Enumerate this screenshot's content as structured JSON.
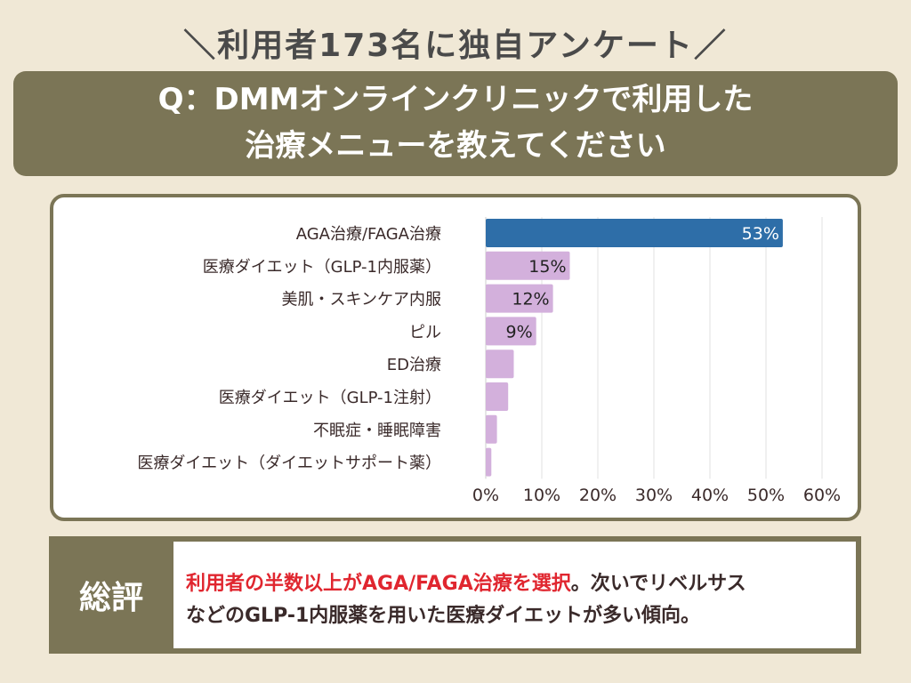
{
  "subtitle": "＼利用者173名に独自アンケート／",
  "question": {
    "line1": "Q：DMMオンラインクリニックで利用した",
    "line2": "治療メニューを教えてください"
  },
  "chart_data": {
    "type": "bar",
    "orientation": "horizontal",
    "categories": [
      "AGA治療/FAGA治療",
      "医療ダイエット（GLP-1内服薬）",
      "美肌・スキンケア内服",
      "ピル",
      "ED治療",
      "医療ダイエット（GLP-1注射）",
      "不眠症・睡眠障害",
      "医療ダイエット（ダイエットサポート薬）"
    ],
    "values": [
      53,
      15,
      12,
      9,
      5,
      4,
      2,
      1
    ],
    "data_labels": [
      "53%",
      "15%",
      "12%",
      "9%",
      "",
      "",
      "",
      ""
    ],
    "xlim": [
      0,
      60
    ],
    "xticks": [
      "0%",
      "10%",
      "20%",
      "30%",
      "40%",
      "50%",
      "60%"
    ],
    "grid": true,
    "colors": {
      "highlight": "#2e6ea8",
      "default": "#d3b0dc"
    }
  },
  "summary": {
    "label": "総評",
    "highlight": "利用者の半数以上がAGA/FAGA治療を選択",
    "rest1": "。次いでリベルサス",
    "line2": "などのGLP-1内服薬を用いた医療ダイエットが多い傾向。"
  }
}
